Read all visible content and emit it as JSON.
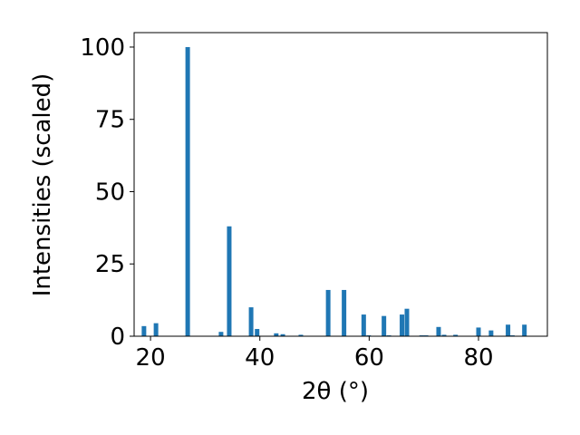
{
  "chart_data": {
    "type": "bar",
    "xlabel": "2θ (°)",
    "ylabel": "Intensities (scaled)",
    "color": "#1f77b4",
    "x": [
      18.8,
      21.0,
      26.8,
      32.9,
      34.4,
      38.4,
      39.5,
      43.0,
      44.2,
      47.5,
      52.5,
      55.4,
      59.0,
      59.9,
      62.7,
      63.6,
      66.0,
      66.9,
      69.6,
      70.4,
      72.7,
      73.7,
      75.8,
      80.0,
      82.3,
      85.4,
      86.2,
      88.4
    ],
    "values": [
      3.5,
      4.5,
      100,
      1.5,
      38,
      10,
      2.5,
      1,
      0.7,
      0.5,
      16,
      16,
      7.5,
      0.3,
      7,
      0.3,
      7.5,
      9.5,
      0.3,
      0.3,
      3.2,
      0.5,
      0.5,
      3,
      2,
      4,
      0.3,
      4
    ],
    "xlim": [
      17.0,
      92.6
    ],
    "ylim": [
      0,
      105
    ],
    "xticks": [
      20,
      40,
      60,
      80
    ],
    "yticks": [
      0,
      25,
      50,
      75,
      100
    ]
  }
}
